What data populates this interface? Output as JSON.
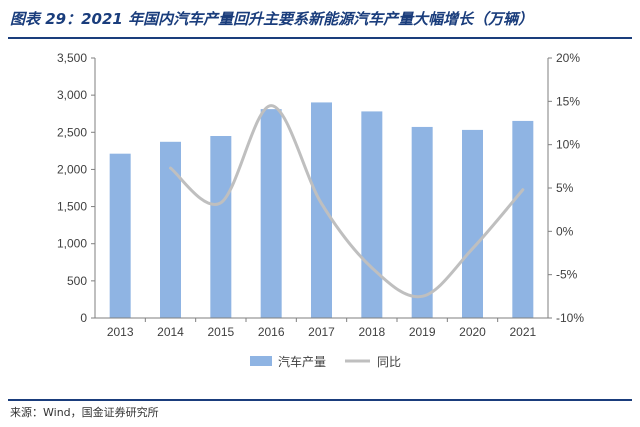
{
  "title": "图表 29：2021 年国内汽车产量回升主要系新能源汽车产量大幅增长（万辆）",
  "source": "来源：Wind，国金证券研究所",
  "chart_data": {
    "type": "bar",
    "categories": [
      "2013",
      "2014",
      "2015",
      "2016",
      "2017",
      "2018",
      "2019",
      "2020",
      "2021"
    ],
    "series": [
      {
        "name": "汽车产量",
        "type": "bar",
        "axis": "left",
        "color": "#8fb4e3",
        "values": [
          2212,
          2372,
          2450,
          2812,
          2902,
          2781,
          2572,
          2532,
          2653
        ]
      },
      {
        "name": "同比",
        "type": "line",
        "axis": "right",
        "color": "#bfbfbf",
        "values": [
          null,
          7.3,
          3.3,
          14.5,
          3.2,
          -4.2,
          -7.5,
          -2.0,
          4.8
        ]
      }
    ],
    "yleft": {
      "min": 0,
      "max": 3500,
      "step": 500,
      "ticks": [
        "0",
        "500",
        "1,000",
        "1,500",
        "2,000",
        "2,500",
        "3,000",
        "3,500"
      ]
    },
    "yright": {
      "min": -10,
      "max": 20,
      "step": 5,
      "ticks": [
        "-10%",
        "-5%",
        "0%",
        "5%",
        "10%",
        "15%",
        "20%"
      ]
    },
    "legend": {
      "position": "bottom",
      "items": [
        "汽车产量",
        "同比"
      ]
    },
    "grid": false
  }
}
